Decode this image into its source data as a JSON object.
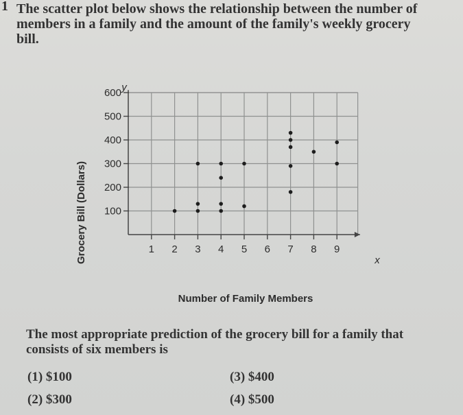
{
  "question": {
    "number": "1",
    "lines": [
      "The scatter plot below shows the relationship between the number of",
      "members in a family and the amount of the family's weekly grocery",
      "bill."
    ]
  },
  "prompt": {
    "lines": [
      "The most appropriate prediction of the grocery bill for a family that",
      "consists of six members is"
    ]
  },
  "choices": [
    {
      "label": "(1) $100"
    },
    {
      "label": "(2) $300"
    },
    {
      "label": "(3) $400"
    },
    {
      "label": "(4) $500"
    }
  ],
  "chart_data": {
    "type": "scatter",
    "xlabel": "Number of Family Members",
    "ylabel": "Grocery Bill (Dollars)",
    "x_axis_name": "x",
    "y_axis_name": "y",
    "xlim": [
      0,
      9.7
    ],
    "ylim": [
      0,
      640
    ],
    "xticks": [
      1,
      2,
      3,
      4,
      5,
      6,
      7,
      8,
      9
    ],
    "yticks": [
      100,
      200,
      300,
      400,
      500,
      600
    ],
    "grid": true,
    "points": [
      {
        "x": 2,
        "y": 100
      },
      {
        "x": 3,
        "y": 100
      },
      {
        "x": 3,
        "y": 130
      },
      {
        "x": 3,
        "y": 300
      },
      {
        "x": 4,
        "y": 100
      },
      {
        "x": 4,
        "y": 130
      },
      {
        "x": 4,
        "y": 240
      },
      {
        "x": 4,
        "y": 300
      },
      {
        "x": 5,
        "y": 120
      },
      {
        "x": 5,
        "y": 300
      },
      {
        "x": 7,
        "y": 180
      },
      {
        "x": 7,
        "y": 290
      },
      {
        "x": 7,
        "y": 370
      },
      {
        "x": 7,
        "y": 400
      },
      {
        "x": 7,
        "y": 430
      },
      {
        "x": 8,
        "y": 350
      },
      {
        "x": 9,
        "y": 300
      },
      {
        "x": 9,
        "y": 390
      }
    ]
  }
}
